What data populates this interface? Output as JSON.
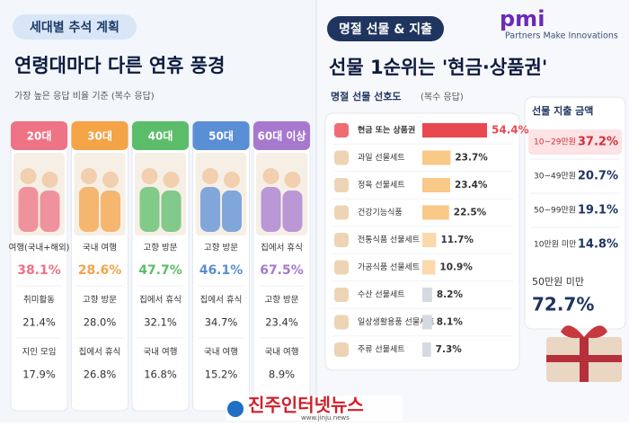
{
  "left": {
    "badge": "세대별 추석 계획",
    "title": "연령대마다 다른 연휴 풍경",
    "note": "가장 높은 응답 비율 기준 (복수 응답)",
    "columns": [
      {
        "label": "20대",
        "color": "#ee7384",
        "items": [
          {
            "label": "여행(국내+해외)",
            "value": "38.1%"
          },
          {
            "label": "취미활동",
            "value": "21.4%"
          },
          {
            "label": "지인 모임",
            "value": "17.9%"
          }
        ]
      },
      {
        "label": "30대",
        "color": "#f4a347",
        "items": [
          {
            "label": "국내 여행",
            "value": "28.6%"
          },
          {
            "label": "고향 방문",
            "value": "28.0%"
          },
          {
            "label": "집에서 휴식",
            "value": "26.8%"
          }
        ]
      },
      {
        "label": "40대",
        "color": "#5bbd69",
        "items": [
          {
            "label": "고향 방문",
            "value": "47.7%"
          },
          {
            "label": "집에서 휴식",
            "value": "32.1%"
          },
          {
            "label": "국내 여행",
            "value": "16.8%"
          }
        ]
      },
      {
        "label": "50대",
        "color": "#5a8ed5",
        "items": [
          {
            "label": "고향 방문",
            "value": "46.1%"
          },
          {
            "label": "집에서 휴식",
            "value": "34.7%"
          },
          {
            "label": "국내 여행",
            "value": "15.2%"
          }
        ]
      },
      {
        "label": "60대 이상",
        "color": "#a679cf",
        "items": [
          {
            "label": "집에서 휴식",
            "value": "67.5%"
          },
          {
            "label": "고향 방문",
            "value": "23.4%"
          },
          {
            "label": "국내 여행",
            "value": "8.9%"
          }
        ]
      }
    ]
  },
  "right": {
    "badge": "명절 선물 & 지출",
    "title": "선물 1순위는 '현금·상품권'",
    "spending": {
      "title": "선물 지출 금액",
      "rows": [
        {
          "label": "10~29만원",
          "value": "37.2%"
        },
        {
          "label": "30~49만원",
          "value": "20.7%"
        },
        {
          "label": "50~99만원",
          "value": "19.1%"
        },
        {
          "label": "10만원 미만",
          "value": "14.8%"
        }
      ],
      "summary_label": "50만원 미만",
      "summary_value": "72.7%"
    }
  },
  "chart_data": {
    "type": "bar",
    "orientation": "horizontal",
    "title": "명절 선물 선호도",
    "subtitle": "(복수 응답)",
    "categories": [
      "현금 또는 상품권",
      "과일 선물세트",
      "정육 선물세트",
      "건강기능식품",
      "전통식품 선물세트",
      "가공식품 선물세트",
      "수산 선물세트",
      "일상생활용품 선물세트",
      "주류 선물세트"
    ],
    "values": [
      54.4,
      23.7,
      23.4,
      22.5,
      11.7,
      10.9,
      8.2,
      8.1,
      7.3
    ],
    "value_labels": [
      "54.4%",
      "23.7%",
      "23.4%",
      "22.5%",
      "11.7%",
      "10.9%",
      "8.2%",
      "8.1%",
      "7.3%"
    ],
    "colors": [
      "#e8494f",
      "#f8c987",
      "#f8c987",
      "#f8c987",
      "#fbd9ad",
      "#fbd9ad",
      "#d5dae2",
      "#d5dae2",
      "#d5dae2"
    ]
  },
  "logo": {
    "mark": "pmi",
    "tagline": "Partners Make Innovations"
  },
  "footer": {
    "name": "진주인터넷뉴스",
    "url": "www.jinju.news"
  }
}
